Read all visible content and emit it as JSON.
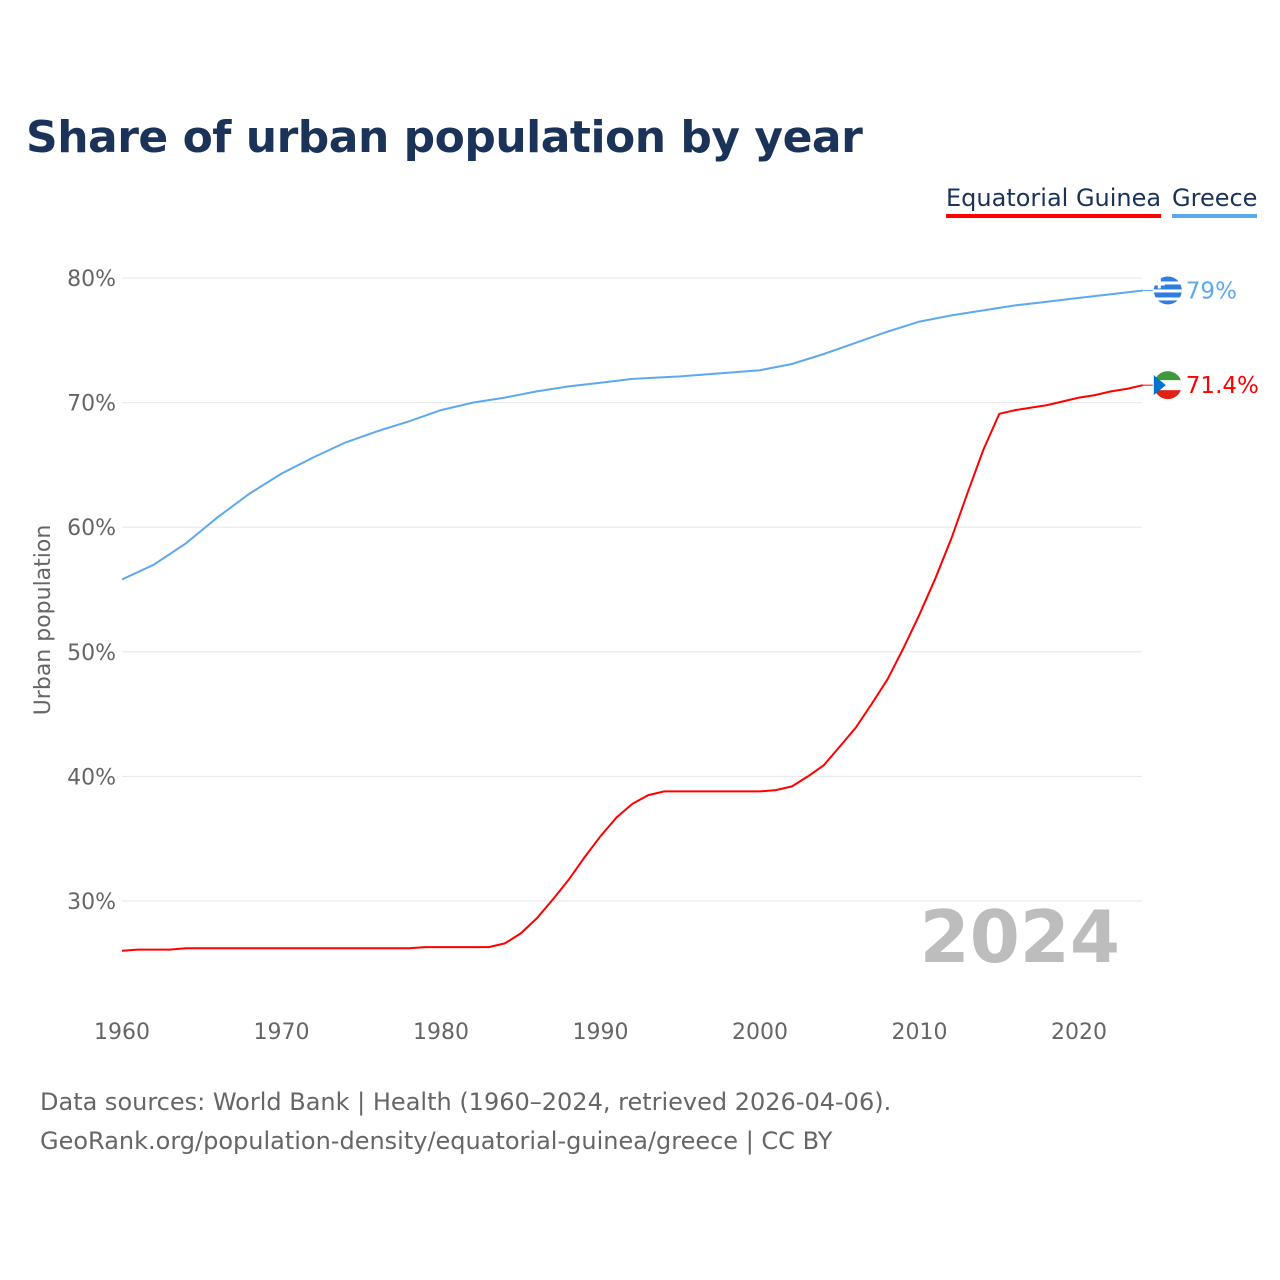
{
  "title": "Share of urban population by year",
  "footer": {
    "line1": "Data sources: World Bank | Health (1960–2024, retrieved 2026-04-06).",
    "line2": "GeoRank.org/population-density/equatorial-guinea/greece | CC BY"
  },
  "chart_data": {
    "type": "line",
    "title": "Share of urban population by year",
    "xlabel": "",
    "ylabel": "Urban population",
    "xlim": [
      1960,
      2024
    ],
    "ylim": [
      22,
      84
    ],
    "yticks": [
      30,
      40,
      50,
      60,
      70,
      80
    ],
    "ytick_labels": [
      "30%",
      "40%",
      "50%",
      "60%",
      "70%",
      "80%"
    ],
    "xticks": [
      1960,
      1970,
      1980,
      1990,
      2000,
      2010,
      2020
    ],
    "xtick_labels": [
      "1960",
      "1970",
      "1980",
      "1990",
      "2000",
      "2010",
      "2020"
    ],
    "year_label": "2024",
    "legend_position": "top-right",
    "series": [
      {
        "name": "Equatorial Guinea",
        "color": "#ff0000",
        "end_label": "71.4%",
        "flag": "equatorial-guinea-flag",
        "x": [
          1960,
          1961,
          1963,
          1964,
          1970,
          1978,
          1979,
          1983,
          1984,
          1985,
          1986,
          1987,
          1988,
          1989,
          1990,
          1991,
          1992,
          1993,
          1994,
          2000,
          2001,
          2002,
          2003,
          2004,
          2005,
          2006,
          2007,
          2008,
          2009,
          2010,
          2011,
          2012,
          2013,
          2014,
          2015,
          2016,
          2017,
          2018,
          2019,
          2020,
          2021,
          2022,
          2023,
          2024
        ],
        "y": [
          26.0,
          26.1,
          26.1,
          26.2,
          26.2,
          26.2,
          26.3,
          26.3,
          26.6,
          27.4,
          28.6,
          30.1,
          31.7,
          33.5,
          35.2,
          36.7,
          37.8,
          38.5,
          38.8,
          38.8,
          38.9,
          39.2,
          40.0,
          40.9,
          42.4,
          43.9,
          45.8,
          47.8,
          50.3,
          53.0,
          55.9,
          59.1,
          62.7,
          66.2,
          69.1,
          69.4,
          69.6,
          69.8,
          70.1,
          70.4,
          70.6,
          70.9,
          71.1,
          71.4
        ]
      },
      {
        "name": "Greece",
        "color": "#5ea8ee",
        "end_label": "79%",
        "flag": "greece-flag",
        "x": [
          1960,
          1962,
          1964,
          1966,
          1968,
          1970,
          1972,
          1974,
          1976,
          1978,
          1980,
          1982,
          1984,
          1986,
          1988,
          1990,
          1992,
          1995,
          2000,
          2002,
          2004,
          2006,
          2008,
          2010,
          2012,
          2014,
          2016,
          2018,
          2020,
          2022,
          2024
        ],
        "y": [
          55.8,
          57.0,
          58.7,
          60.8,
          62.7,
          64.3,
          65.6,
          66.8,
          67.7,
          68.5,
          69.4,
          70.0,
          70.4,
          70.9,
          71.3,
          71.6,
          71.9,
          72.1,
          72.6,
          73.1,
          73.9,
          74.8,
          75.7,
          76.5,
          77.0,
          77.4,
          77.8,
          78.1,
          78.4,
          78.7,
          79.0
        ]
      }
    ]
  }
}
